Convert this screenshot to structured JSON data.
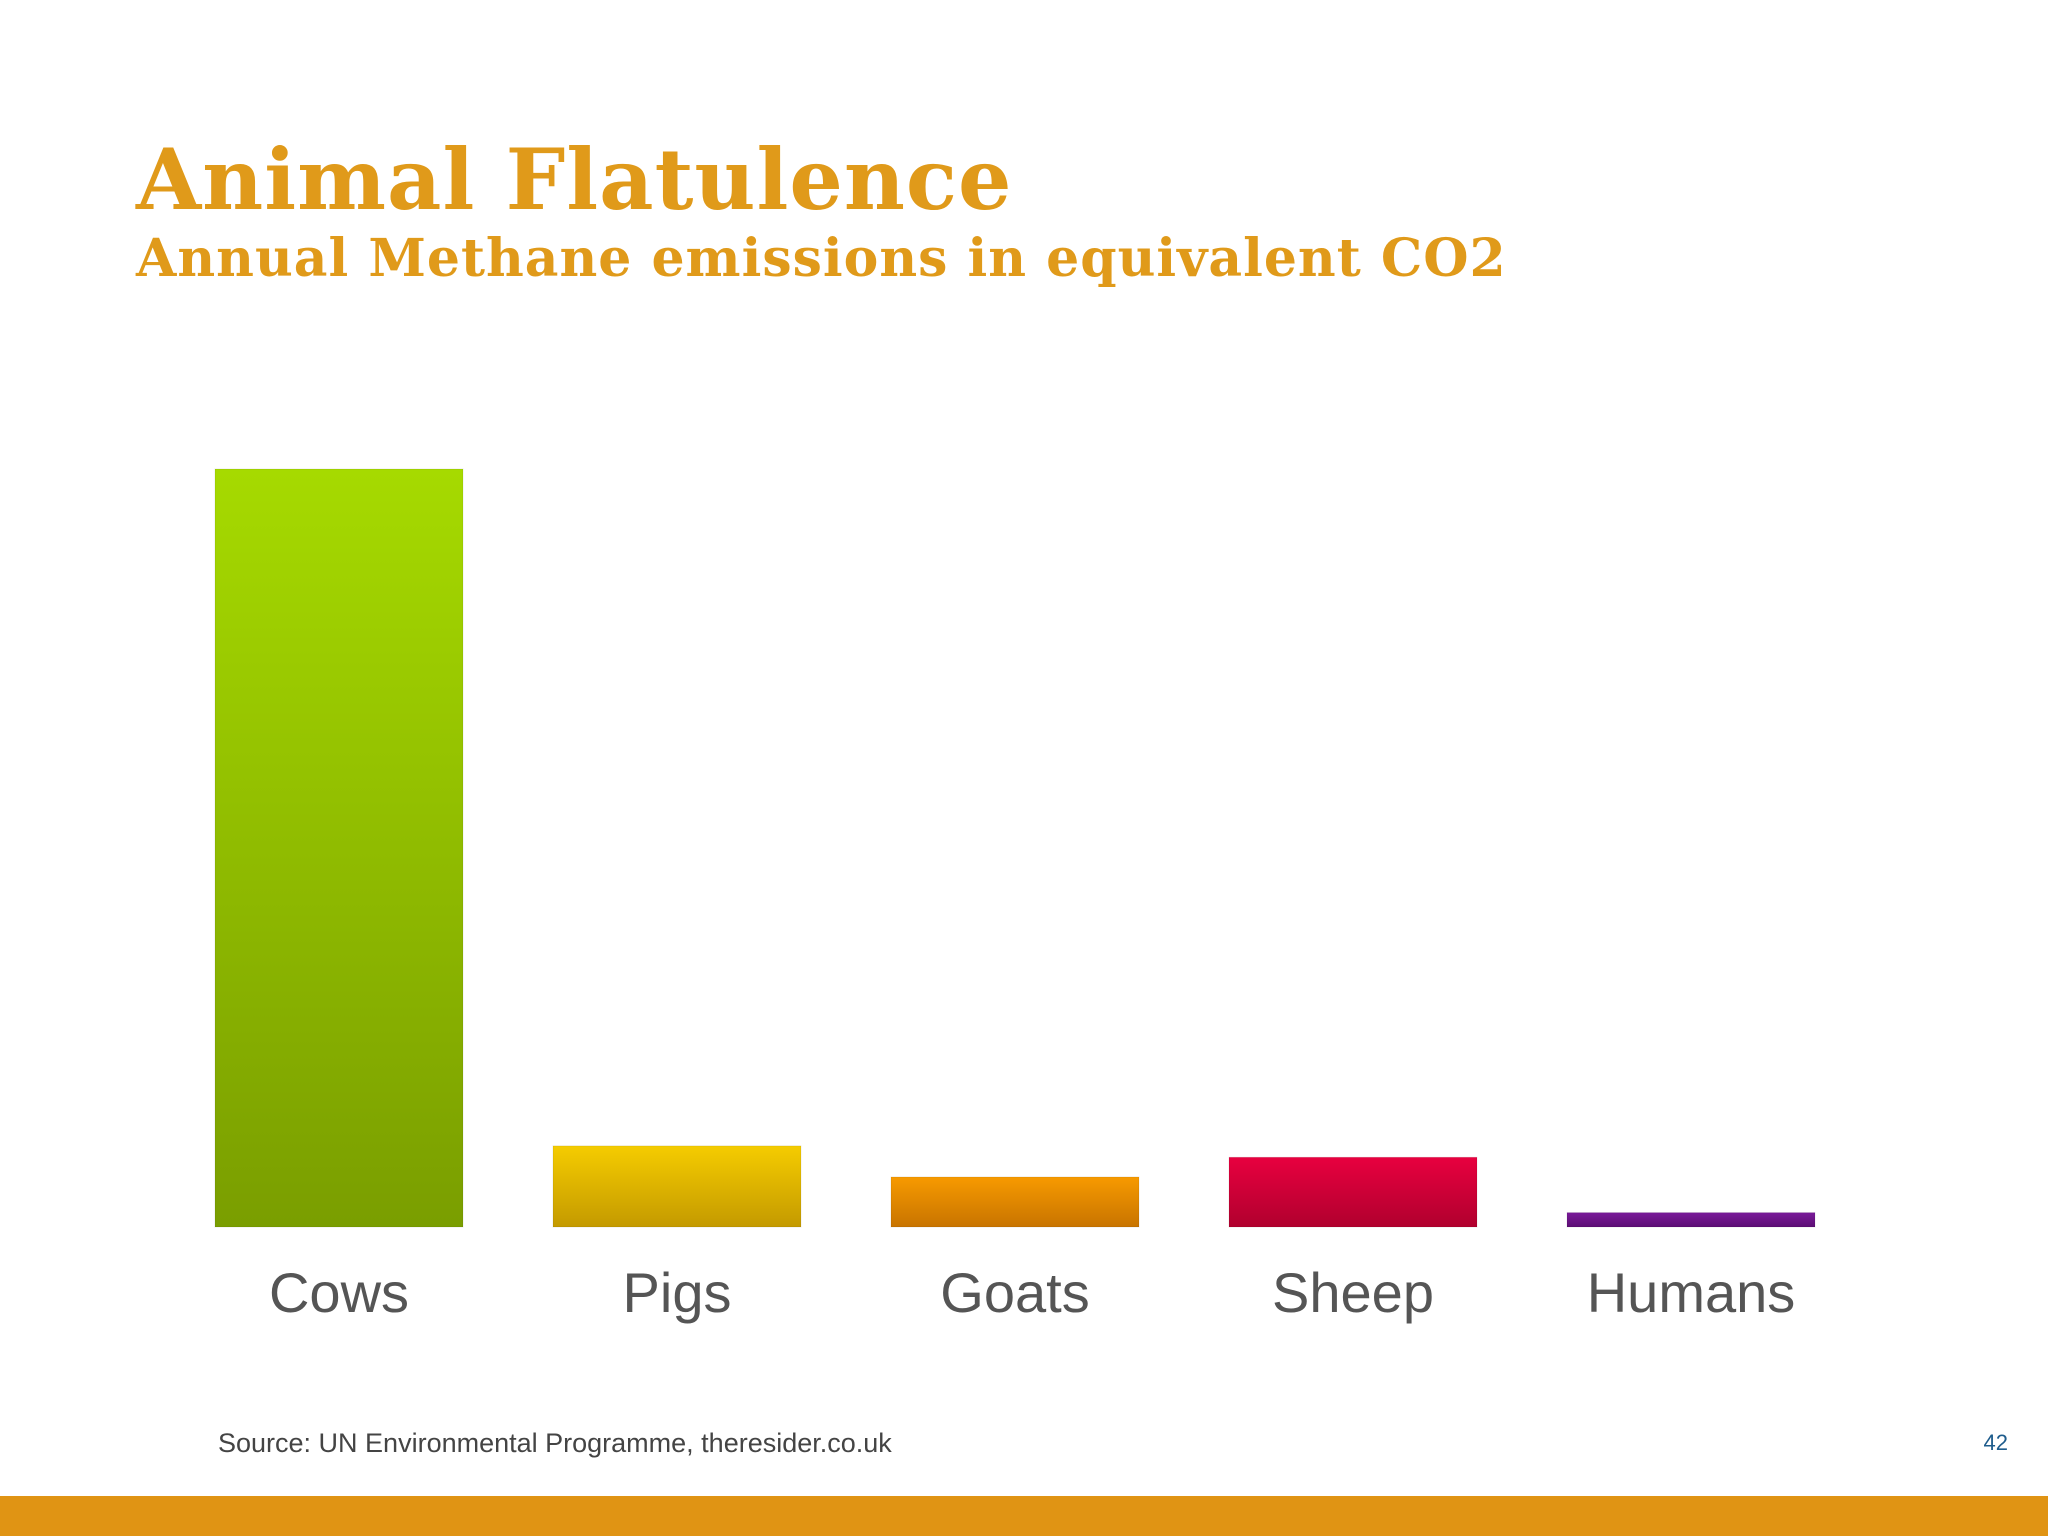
{
  "slide": {
    "source": "Source: UN Environmental Programme, theresider.co.uk",
    "page_number": "42"
  },
  "chart_data": {
    "type": "bar",
    "title": "Animal Flatulence",
    "subtitle": "Annual Methane emissions in equivalent CO2",
    "categories": [
      "Cows",
      "Pigs",
      "Goats",
      "Sheep",
      "Humans"
    ],
    "values": [
      100,
      10.7,
      6.6,
      9.2,
      1.9
    ],
    "ylim": [
      0,
      100
    ],
    "grid": false,
    "legend": "none",
    "bar_colors": [
      [
        "#a6da00",
        "#7a9e00"
      ],
      [
        "#f5cc00",
        "#c49a00"
      ],
      [
        "#f79a00",
        "#c87400"
      ],
      [
        "#e8003f",
        "#b0002e"
      ],
      [
        "#7a1a9a",
        "#5c0e74"
      ]
    ]
  }
}
